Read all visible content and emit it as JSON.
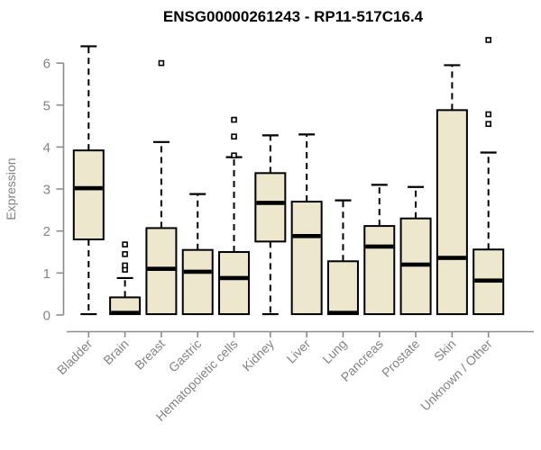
{
  "chart_data": {
    "type": "boxplot",
    "title": "ENSG00000261243 - RP11-517C16.4",
    "ylabel": "Expression",
    "xlabel": "",
    "ylim": [
      0,
      6.75
    ],
    "yticks": [
      0,
      1,
      2,
      3,
      4,
      5,
      6
    ],
    "grid": false,
    "legend": "none",
    "categories": [
      "Bladder",
      "Brain",
      "Breast",
      "Gastric",
      "Hematopoietic cells",
      "Kidney",
      "Liver",
      "Lung",
      "Pancreas",
      "Prostate",
      "Skin",
      "Unknown / Other"
    ],
    "series": [
      {
        "name": "Bladder",
        "whisker_low": 0.02,
        "q1": 1.8,
        "median": 3.02,
        "q3": 3.92,
        "whisker_high": 6.4,
        "outliers": []
      },
      {
        "name": "Brain",
        "whisker_low": 0.02,
        "q1": 0.02,
        "median": 0.05,
        "q3": 0.42,
        "whisker_high": 0.88,
        "outliers": [
          1.08,
          1.18,
          1.45,
          1.68
        ]
      },
      {
        "name": "Breast",
        "whisker_low": 0.02,
        "q1": 0.02,
        "median": 1.1,
        "q3": 2.07,
        "whisker_high": 4.12,
        "outliers": [
          6.0
        ]
      },
      {
        "name": "Gastric",
        "whisker_low": 0.02,
        "q1": 0.02,
        "median": 1.03,
        "q3": 1.55,
        "whisker_high": 2.88,
        "outliers": []
      },
      {
        "name": "Hematopoietic cells",
        "whisker_low": 0.02,
        "q1": 0.02,
        "median": 0.88,
        "q3": 1.5,
        "whisker_high": 3.76,
        "outliers": [
          3.8,
          4.25,
          4.65
        ]
      },
      {
        "name": "Kidney",
        "whisker_low": 0.02,
        "q1": 1.75,
        "median": 2.67,
        "q3": 3.38,
        "whisker_high": 4.28,
        "outliers": []
      },
      {
        "name": "Liver",
        "whisker_low": 0.02,
        "q1": 0.02,
        "median": 1.88,
        "q3": 2.7,
        "whisker_high": 4.3,
        "outliers": []
      },
      {
        "name": "Lung",
        "whisker_low": 0.02,
        "q1": 0.02,
        "median": 0.05,
        "q3": 1.28,
        "whisker_high": 2.73,
        "outliers": []
      },
      {
        "name": "Pancreas",
        "whisker_low": 0.02,
        "q1": 0.02,
        "median": 1.63,
        "q3": 2.12,
        "whisker_high": 3.1,
        "outliers": []
      },
      {
        "name": "Prostate",
        "whisker_low": 0.02,
        "q1": 0.02,
        "median": 1.2,
        "q3": 2.3,
        "whisker_high": 3.05,
        "outliers": []
      },
      {
        "name": "Skin",
        "whisker_low": 0.02,
        "q1": 0.02,
        "median": 1.36,
        "q3": 4.88,
        "whisker_high": 5.95,
        "outliers": []
      },
      {
        "name": "Unknown / Other",
        "whisker_low": 0.02,
        "q1": 0.02,
        "median": 0.82,
        "q3": 1.56,
        "whisker_high": 3.87,
        "outliers": [
          4.55,
          4.78,
          6.55
        ]
      }
    ],
    "colors": {
      "box_fill": "#EDE7CE",
      "box_border": "#000000",
      "median": "#000000",
      "whisker": "#000000",
      "axis": "#8C8C8C",
      "tick_label": "#838383",
      "title": "#000000",
      "background": "#FFFFFF"
    }
  }
}
